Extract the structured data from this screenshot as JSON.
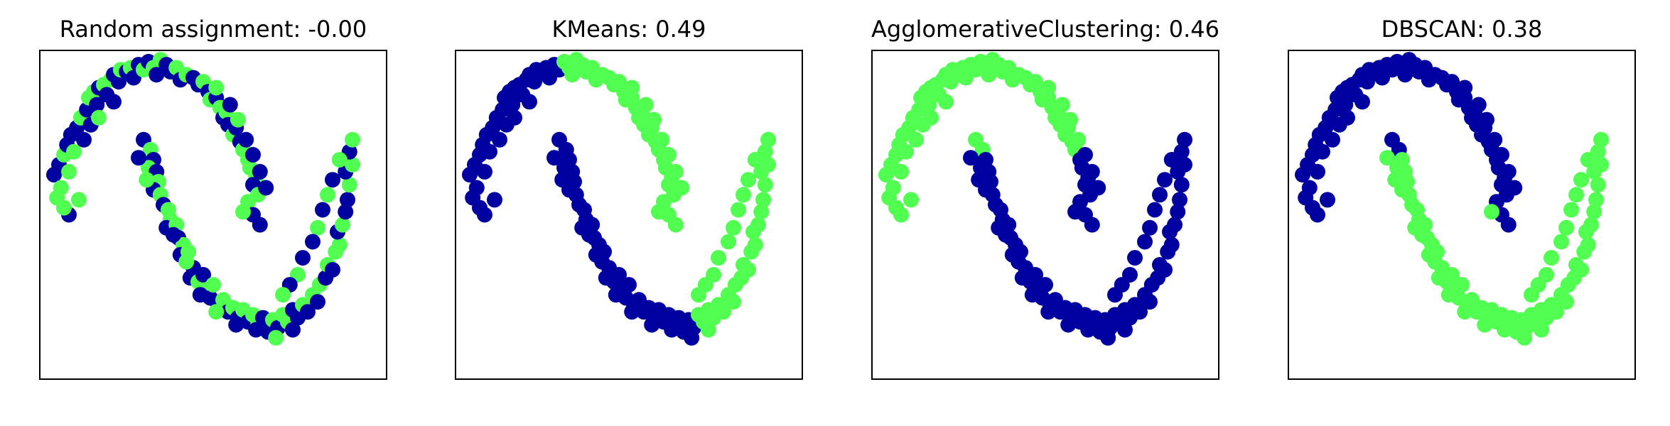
{
  "colors": {
    "cluster_0": "#0000A0",
    "cluster_1": "#50FF50",
    "axes": "#000000",
    "background": "#ffffff"
  },
  "chart_data": [
    {
      "type": "scatter",
      "title": "Random assignment: -0.00",
      "xlabel": "",
      "ylabel": "",
      "xlim": [
        -1.6,
        1.9
      ],
      "ylim": [
        -1.9,
        1.4
      ],
      "ticks": "none",
      "grid": false,
      "coloring": "random",
      "series": [
        {
          "values_ref": "points",
          "colors_key": "random"
        }
      ]
    },
    {
      "type": "scatter",
      "title": "KMeans: 0.49",
      "xlabel": "",
      "ylabel": "",
      "xlim": [
        -1.6,
        1.9
      ],
      "ylim": [
        -1.9,
        1.4
      ],
      "ticks": "none",
      "grid": false,
      "coloring": "kmeans"
    },
    {
      "type": "scatter",
      "title": "AgglomerativeClustering: 0.46",
      "xlabel": "",
      "ylabel": "",
      "xlim": [
        -1.6,
        1.9
      ],
      "ylim": [
        -1.9,
        1.4
      ],
      "ticks": "none",
      "grid": false,
      "coloring": "agglomerative"
    },
    {
      "type": "scatter",
      "title": "DBSCAN: 0.38",
      "xlabel": "",
      "ylabel": "",
      "xlim": [
        -1.6,
        1.9
      ],
      "ylim": [
        -1.9,
        1.4
      ],
      "ticks": "none",
      "grid": false,
      "coloring": "dbscan"
    }
  ],
  "points": [
    [
      -1.45,
      0.15
    ],
    [
      -1.42,
      -0.08
    ],
    [
      -1.4,
      0.25
    ],
    [
      -1.38,
      0.02
    ],
    [
      -1.35,
      0.35
    ],
    [
      -1.32,
      0.45
    ],
    [
      -1.3,
      -0.25
    ],
    [
      -1.3,
      0.18
    ],
    [
      -1.28,
      0.55
    ],
    [
      -1.25,
      0.38
    ],
    [
      -1.22,
      0.62
    ],
    [
      -1.2,
      -0.1
    ],
    [
      -1.18,
      0.72
    ],
    [
      -1.15,
      0.5
    ],
    [
      -1.12,
      0.8
    ],
    [
      -1.1,
      0.92
    ],
    [
      -1.08,
      0.65
    ],
    [
      -1.05,
      0.98
    ],
    [
      -1.02,
      0.85
    ],
    [
      -1.0,
      1.02
    ],
    [
      -0.95,
      1.05
    ],
    [
      -0.92,
      0.95
    ],
    [
      -0.88,
      1.1
    ],
    [
      -0.85,
      1.15
    ],
    [
      -0.8,
      1.08
    ],
    [
      -0.78,
      1.2
    ],
    [
      -0.72,
      1.18
    ],
    [
      -0.68,
      1.22
    ],
    [
      -0.65,
      1.12
    ],
    [
      -0.6,
      1.25
    ],
    [
      -0.55,
      1.2
    ],
    [
      -0.5,
      1.28
    ],
    [
      -0.45,
      1.22
    ],
    [
      -0.42,
      1.15
    ],
    [
      -0.38,
      1.3
    ],
    [
      -0.32,
      1.25
    ],
    [
      -0.28,
      1.18
    ],
    [
      -0.22,
      1.22
    ],
    [
      -0.18,
      1.1
    ],
    [
      -0.12,
      1.15
    ],
    [
      -0.05,
      1.12
    ],
    [
      0.0,
      1.05
    ],
    [
      0.05,
      1.08
    ],
    [
      0.1,
      0.98
    ],
    [
      0.12,
      0.9
    ],
    [
      0.18,
      0.92
    ],
    [
      0.22,
      0.82
    ],
    [
      0.25,
      0.72
    ],
    [
      0.28,
      0.78
    ],
    [
      0.3,
      0.65
    ],
    [
      0.35,
      0.55
    ],
    [
      0.38,
      0.62
    ],
    [
      0.42,
      0.48
    ],
    [
      0.45,
      0.4
    ],
    [
      0.48,
      0.5
    ],
    [
      0.5,
      0.3
    ],
    [
      0.52,
      0.22
    ],
    [
      0.55,
      0.35
    ],
    [
      0.58,
      0.12
    ],
    [
      0.55,
      0.05
    ],
    [
      0.6,
      -0.05
    ],
    [
      0.62,
      0.18
    ],
    [
      0.5,
      -0.12
    ],
    [
      0.55,
      -0.25
    ],
    [
      0.62,
      -0.35
    ],
    [
      -0.55,
      0.5
    ],
    [
      -0.48,
      0.4
    ],
    [
      -0.45,
      0.3
    ],
    [
      -0.5,
      0.22
    ],
    [
      -0.42,
      0.18
    ],
    [
      -0.4,
      0.08
    ],
    [
      -0.45,
      0.0
    ],
    [
      -0.38,
      -0.05
    ],
    [
      -0.35,
      -0.15
    ],
    [
      -0.3,
      -0.2
    ],
    [
      -0.28,
      -0.3
    ],
    [
      -0.32,
      -0.38
    ],
    [
      -0.22,
      -0.35
    ],
    [
      -0.2,
      -0.48
    ],
    [
      -0.15,
      -0.55
    ],
    [
      -0.18,
      -0.65
    ],
    [
      -0.1,
      -0.62
    ],
    [
      -0.05,
      -0.78
    ],
    [
      -0.08,
      -0.88
    ],
    [
      0.0,
      -0.92
    ],
    [
      0.05,
      -0.85
    ],
    [
      0.08,
      -1.0
    ],
    [
      0.12,
      -1.08
    ],
    [
      0.15,
      -0.95
    ],
    [
      0.2,
      -1.15
    ],
    [
      0.25,
      -1.1
    ],
    [
      0.3,
      -1.22
    ],
    [
      0.35,
      -1.18
    ],
    [
      0.4,
      -1.28
    ],
    [
      0.45,
      -1.2
    ],
    [
      0.5,
      -1.32
    ],
    [
      0.55,
      -1.25
    ],
    [
      0.6,
      -1.35
    ],
    [
      0.65,
      -1.28
    ],
    [
      0.7,
      -1.42
    ],
    [
      0.75,
      -1.3
    ],
    [
      0.8,
      -1.38
    ],
    [
      0.85,
      -1.25
    ],
    [
      0.9,
      -1.32
    ],
    [
      0.95,
      -1.2
    ],
    [
      1.0,
      -1.28
    ],
    [
      1.05,
      -1.15
    ],
    [
      1.1,
      -1.22
    ],
    [
      1.15,
      -1.05
    ],
    [
      1.2,
      -1.12
    ],
    [
      1.22,
      -0.95
    ],
    [
      1.28,
      -0.88
    ],
    [
      1.3,
      -0.75
    ],
    [
      1.35,
      -0.8
    ],
    [
      1.38,
      -0.62
    ],
    [
      1.42,
      -0.55
    ],
    [
      1.4,
      -0.42
    ],
    [
      1.45,
      -0.35
    ],
    [
      1.48,
      -0.22
    ],
    [
      1.5,
      -0.1
    ],
    [
      1.52,
      0.05
    ],
    [
      1.48,
      0.18
    ],
    [
      1.55,
      0.25
    ],
    [
      1.52,
      0.38
    ],
    [
      1.55,
      0.5
    ],
    [
      1.42,
      0.3
    ],
    [
      1.35,
      0.1
    ],
    [
      1.3,
      -0.05
    ],
    [
      1.25,
      -0.2
    ],
    [
      1.2,
      -0.38
    ],
    [
      1.15,
      -0.52
    ],
    [
      1.05,
      -0.68
    ],
    [
      1.0,
      -0.85
    ],
    [
      0.92,
      -0.95
    ],
    [
      0.85,
      -1.05
    ],
    [
      -0.25,
      -0.45
    ],
    [
      -0.12,
      -0.72
    ],
    [
      0.02,
      -1.05
    ],
    [
      0.18,
      -1.22
    ],
    [
      0.38,
      -1.35
    ],
    [
      0.58,
      -1.4
    ],
    [
      0.78,
      -1.48
    ],
    [
      0.95,
      -1.4
    ],
    [
      -1.0,
      0.72
    ],
    [
      -0.85,
      0.88
    ],
    [
      0.18,
      1.02
    ],
    [
      0.32,
      0.85
    ],
    [
      0.4,
      0.7
    ],
    [
      -1.35,
      -0.18
    ],
    [
      -0.6,
      0.32
    ],
    [
      -0.52,
      0.1
    ],
    [
      0.68,
      0.02
    ],
    [
      0.45,
      -0.22
    ]
  ],
  "assignments": {
    "random": [
      0,
      1,
      0,
      1,
      1,
      0,
      0,
      1,
      0,
      1,
      0,
      1,
      1,
      0,
      0,
      1,
      0,
      1,
      0,
      0,
      1,
      0,
      1,
      0,
      0,
      1,
      0,
      1,
      0,
      0,
      1,
      0,
      1,
      0,
      1,
      0,
      0,
      1,
      0,
      1,
      0,
      0,
      1,
      0,
      1,
      0,
      1,
      0,
      1,
      0,
      1,
      0,
      0,
      1,
      0,
      1,
      1,
      0,
      1,
      0,
      1,
      0,
      1,
      0,
      0,
      0,
      1,
      0,
      1,
      0,
      1,
      0,
      1,
      0,
      1,
      1,
      0,
      1,
      0,
      1,
      0,
      1,
      0,
      0,
      1,
      0,
      1,
      0,
      1,
      0,
      1,
      0,
      1,
      0,
      1,
      0,
      1,
      1,
      0,
      0,
      1,
      0,
      1,
      1,
      0,
      0,
      1,
      0,
      1,
      0,
      1,
      0,
      1,
      0,
      1,
      1,
      0,
      1,
      0,
      0,
      1,
      0,
      1,
      0,
      1,
      1,
      0,
      1,
      0,
      1,
      0,
      0,
      1,
      0,
      1,
      0,
      1,
      0,
      1,
      0,
      0,
      1,
      0,
      1,
      0,
      1,
      0,
      1,
      1,
      0,
      1,
      0,
      1
    ],
    "kmeans_rule": "x_lt_line",
    "agglomerative_rule": "x_lt_line",
    "dbscan_rule": "moon"
  }
}
